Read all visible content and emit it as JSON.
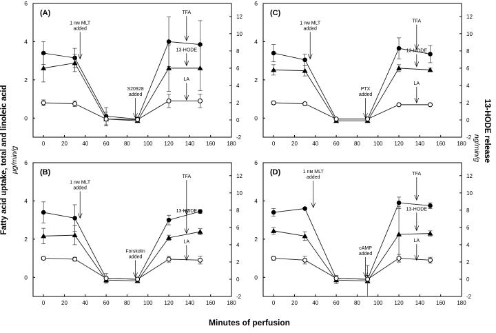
{
  "figure": {
    "ylabel_left": "Fatty acid uptake, total and linoleic acid",
    "ylabel_left_units": "μg/min/g",
    "ylabel_right": "13-HODE release",
    "ylabel_right_units": "ng/min/g",
    "xlabel": "Minutes of perfusion"
  },
  "chart_data": [
    {
      "panel": "(A)",
      "type": "line",
      "x": [
        0,
        30,
        60,
        90,
        120,
        150
      ],
      "xlim": [
        -10,
        180
      ],
      "x_ticks": [
        0,
        20,
        40,
        60,
        80,
        100,
        120,
        140,
        160,
        180
      ],
      "ylim_left": [
        -1,
        6
      ],
      "y_ticks_left": [
        0,
        2,
        4,
        6
      ],
      "ylim_right": [
        -2,
        13.5
      ],
      "y_ticks_right": [
        -2,
        0,
        2,
        4,
        6,
        8,
        10,
        12
      ],
      "series": [
        {
          "name": "TFA",
          "axis": "left",
          "marker": "filled-circle",
          "values": [
            3.4,
            3.15,
            0.1,
            -0.05,
            4.0,
            3.85
          ],
          "errors": [
            0.6,
            0.5,
            0.45,
            0.05,
            1.3,
            1.25
          ]
        },
        {
          "name": "13-HODE",
          "axis": "right",
          "marker": "filled-triangle",
          "values": [
            6.0,
            6.6,
            0.1,
            -0.1,
            6.0,
            6.0
          ],
          "errors": [
            1.6,
            1.0,
            0.8,
            0.1,
            2.7,
            2.6
          ]
        },
        {
          "name": "LA",
          "axis": "left",
          "marker": "open-circle",
          "values": [
            0.8,
            0.75,
            -0.05,
            -0.08,
            0.9,
            0.9
          ],
          "errors": [
            0.15,
            0.15,
            0.1,
            0.05,
            0.35,
            0.35
          ]
        }
      ],
      "annotations": [
        {
          "text": "1 nм MLT",
          "text2": "added",
          "x": 35,
          "y_text": 4.9,
          "y_tip": 3.1
        },
        {
          "text": "S20928",
          "text2": "added",
          "x": 88,
          "y_text": 1.45,
          "y_tip": 0.0
        },
        {
          "text": "TFA",
          "x": 137,
          "y_text": 5.45,
          "y_tip": 4.05
        },
        {
          "text": "13-HODE",
          "x": 137,
          "y_text": 3.5,
          "y_tip": 2.75
        },
        {
          "text": "LA",
          "x": 137,
          "y_text": 1.95,
          "y_tip": 0.95
        }
      ]
    },
    {
      "panel": "(B)",
      "type": "line",
      "x": [
        0,
        30,
        60,
        90,
        120,
        150
      ],
      "xlim": [
        -10,
        180
      ],
      "x_ticks": [
        0,
        20,
        40,
        60,
        80,
        100,
        120,
        140,
        160,
        180
      ],
      "ylim_left": [
        -1,
        6
      ],
      "y_ticks_left": [
        0,
        2,
        4,
        6
      ],
      "ylim_right": [
        -2,
        13.5
      ],
      "y_ticks_right": [
        -2,
        0,
        2,
        4,
        6,
        8,
        10,
        12
      ],
      "series": [
        {
          "name": "TFA",
          "axis": "left",
          "marker": "filled-circle",
          "values": [
            3.4,
            3.1,
            -0.05,
            -0.1,
            3.0,
            3.45
          ],
          "errors": [
            0.55,
            0.7,
            0.25,
            0.08,
            0.25,
            0.1
          ]
        },
        {
          "name": "13-HODE",
          "axis": "right",
          "marker": "filled-triangle",
          "values": [
            5.0,
            5.1,
            -0.1,
            -0.2,
            4.8,
            5.5
          ],
          "errors": [
            0.9,
            1.1,
            0.3,
            0.2,
            0.3,
            0.35
          ]
        },
        {
          "name": "LA",
          "axis": "left",
          "marker": "open-circle",
          "values": [
            1.0,
            0.95,
            -0.05,
            -0.1,
            0.95,
            0.9
          ],
          "errors": [
            0.08,
            0.1,
            0.1,
            0.05,
            0.15,
            0.2
          ]
        }
      ],
      "annotations": [
        {
          "text": "1 nм MLT",
          "text2": "added",
          "x": 35,
          "y_text": 4.9,
          "y_tip": 3.1
        },
        {
          "text": "Forskolin",
          "text2": "added",
          "x": 88,
          "y_text": 1.3,
          "y_tip": 0.0
        },
        {
          "text": "TFA",
          "x": 137,
          "y_text": 5.2,
          "y_tip": 3.3
        },
        {
          "text": "13-HODE",
          "x": 137,
          "y_text": 3.4,
          "y_tip": 2.3
        },
        {
          "text": "LA",
          "x": 137,
          "y_text": 1.8,
          "y_tip": 0.9
        }
      ]
    },
    {
      "panel": "(C)",
      "type": "line",
      "x": [
        0,
        30,
        60,
        90,
        120,
        150
      ],
      "xlim": [
        -10,
        180
      ],
      "x_ticks": [
        0,
        20,
        40,
        60,
        80,
        100,
        120,
        140,
        160,
        180
      ],
      "ylim_left": [
        -1,
        6
      ],
      "y_ticks_left": [
        0,
        2,
        4,
        6
      ],
      "ylim_right": [
        -2,
        13.5
      ],
      "y_ticks_right": [
        -2,
        0,
        2,
        4,
        6,
        8,
        10,
        12
      ],
      "series": [
        {
          "name": "TFA",
          "axis": "left",
          "marker": "filled-circle",
          "values": [
            3.4,
            3.05,
            -0.05,
            -0.05,
            3.65,
            3.35
          ],
          "errors": [
            0.45,
            0.3,
            0.05,
            0.05,
            0.55,
            0.45
          ]
        },
        {
          "name": "13-HODE",
          "axis": "right",
          "marker": "filled-triangle",
          "values": [
            5.8,
            5.7,
            -0.1,
            -0.1,
            6.0,
            5.8
          ],
          "errors": [
            0.6,
            0.6,
            0.1,
            0.1,
            0.4,
            0.2
          ]
        },
        {
          "name": "LA",
          "axis": "left",
          "marker": "open-circle",
          "values": [
            0.8,
            0.75,
            -0.05,
            -0.05,
            0.7,
            0.7
          ],
          "errors": [
            0.08,
            0.08,
            0.05,
            0.05,
            0.08,
            0.05
          ]
        }
      ],
      "annotations": [
        {
          "text": "1 nм MLT",
          "text2": "added",
          "x": 35,
          "y_text": 4.9,
          "y_tip": 3.1
        },
        {
          "text": "PTX",
          "text2": "added",
          "x": 88,
          "y_text": 1.45,
          "y_tip": 0.0
        },
        {
          "text": "TFA",
          "x": 137,
          "y_text": 5.0,
          "y_tip": 3.6
        },
        {
          "text": "13-HODE",
          "x": 137,
          "y_text": 3.45,
          "y_tip": 2.7
        },
        {
          "text": "LA",
          "x": 137,
          "y_text": 1.75,
          "y_tip": 0.8
        }
      ]
    },
    {
      "panel": "(D)",
      "type": "line",
      "x": [
        0,
        30,
        60,
        90,
        120,
        150
      ],
      "xlim": [
        -10,
        180
      ],
      "x_ticks": [
        0,
        20,
        40,
        60,
        80,
        100,
        120,
        140,
        160,
        180
      ],
      "ylim_left": [
        -1,
        6
      ],
      "y_ticks_left": [
        0,
        2,
        4,
        6
      ],
      "ylim_right": [
        -2,
        13.5
      ],
      "y_ticks_right": [
        -2,
        0,
        2,
        4,
        6,
        8,
        10,
        12
      ],
      "series": [
        {
          "name": "TFA",
          "axis": "left",
          "marker": "filled-circle",
          "values": [
            3.4,
            3.6,
            -0.05,
            -0.1,
            3.9,
            3.75
          ],
          "errors": [
            0.2,
            0.05,
            0.15,
            0.2,
            0.3,
            0.15
          ]
        },
        {
          "name": "13-HODE",
          "axis": "right",
          "marker": "filled-triangle",
          "values": [
            5.6,
            5.0,
            -0.1,
            -0.2,
            5.2,
            5.3
          ],
          "errors": [
            0.4,
            0.5,
            0.4,
            1.8,
            3.2,
            0.3
          ]
        },
        {
          "name": "LA",
          "axis": "left",
          "marker": "open-circle",
          "values": [
            1.0,
            0.9,
            -0.05,
            -0.1,
            1.0,
            0.9
          ],
          "errors": [
            0.1,
            0.2,
            0.1,
            0.2,
            0.2,
            0.15
          ]
        }
      ],
      "annotations": [
        {
          "text": "1 nм MLT",
          "text2": "added",
          "x": 38,
          "y_text": 5.45,
          "y_tip": 3.65
        },
        {
          "text": "cAMP",
          "text2": "added",
          "x": 88,
          "y_text": 1.45,
          "y_tip": 0.0
        },
        {
          "text": "TFA",
          "x": 137,
          "y_text": 5.35,
          "y_tip": 4.05
        },
        {
          "text": "13-HODE",
          "x": 137,
          "y_text": 3.5,
          "y_tip": 2.45
        },
        {
          "text": "LA",
          "x": 137,
          "y_text": 1.85,
          "y_tip": 0.9
        }
      ]
    }
  ]
}
